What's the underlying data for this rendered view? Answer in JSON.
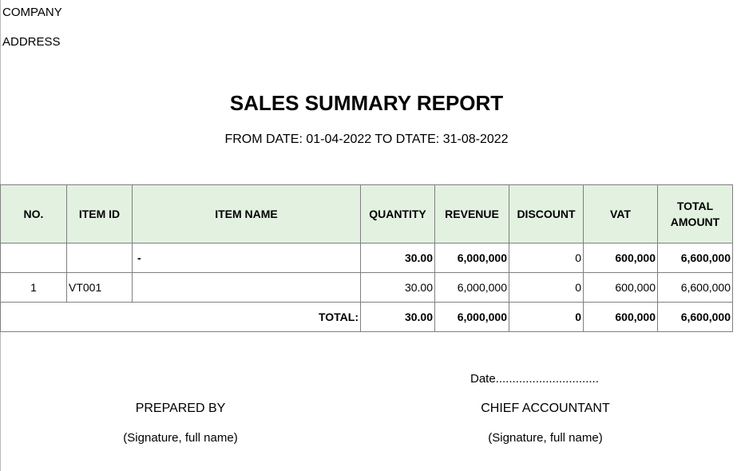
{
  "header": {
    "company": "COMPANY",
    "address": "ADDRESS"
  },
  "report": {
    "title": "SALES SUMMARY REPORT",
    "period": "FROM DATE: 01-04-2022 TO DTATE: 31-08-2022"
  },
  "table": {
    "columns": {
      "no": "NO.",
      "item_id": "ITEM ID",
      "item_name": "ITEM NAME",
      "quantity": "QUANTITY",
      "revenue": "REVENUE",
      "discount": "DISCOUNT",
      "vat": "VAT",
      "total_amount_line1": "TOTAL",
      "total_amount_line2": "AMOUNT"
    },
    "group_row": {
      "no": "",
      "item_id": "",
      "item_name": "-",
      "quantity": "30.00",
      "revenue": "6,000,000",
      "discount": "0",
      "vat": "600,000",
      "total_amount": "6,600,000"
    },
    "rows": [
      {
        "no": "1",
        "item_id": "VT001",
        "item_name": "",
        "quantity": "30.00",
        "revenue": "6,000,000",
        "discount": "0",
        "vat": "600,000",
        "total_amount": "6,600,000"
      }
    ],
    "total_row": {
      "label": "TOTAL:",
      "quantity": "30.00",
      "revenue": "6,000,000",
      "discount": "0",
      "vat": "600,000",
      "total_amount": "6,600,000"
    }
  },
  "signatures": {
    "date_line": "Date...............................",
    "prepared_by": "PREPARED BY",
    "prepared_note": "(Signature, full name)",
    "chief_accountant": "CHIEF ACCOUNTANT",
    "chief_note": "(Signature, full name)"
  }
}
